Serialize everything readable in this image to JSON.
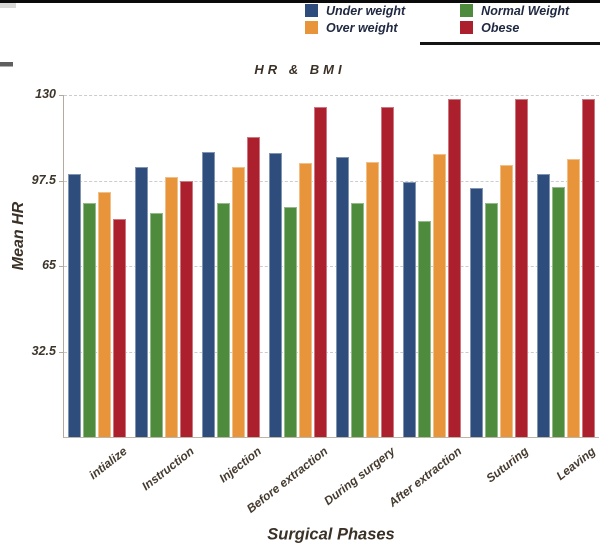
{
  "window": {
    "top_border_color": "#0b0b0b",
    "tab_color": "#d9d9d7",
    "edge_dash_color": "#5f5f5f",
    "legend_underline_color": "#141414"
  },
  "chart_data": {
    "type": "bar",
    "title": "HR & BMI",
    "xlabel": "Surgical Phases",
    "ylabel": "Mean HR",
    "categories": [
      "intialize",
      "Instruction",
      "Injection",
      "Before extraction",
      "During surgery",
      "After extraction",
      "Suturing",
      "Leaving"
    ],
    "series": [
      {
        "name": "Under weight",
        "color": "#2E4D7C",
        "values": [
          100,
          102.5,
          108.5,
          108,
          106.5,
          97,
          94.5,
          100
        ]
      },
      {
        "name": "Normal Weight",
        "color": "#4E8B3D",
        "values": [
          89,
          85,
          89,
          87.5,
          89,
          82,
          89,
          95
        ]
      },
      {
        "name": "Over weight",
        "color": "#E8943A",
        "values": [
          93,
          99,
          102.5,
          104,
          104.5,
          107.5,
          103.5,
          105.5
        ]
      },
      {
        "name": "Obese",
        "color": "#AC1F2D",
        "values": [
          83,
          97.5,
          114,
          125.5,
          125.5,
          128.5,
          128.5,
          128.5
        ]
      }
    ],
    "y_ticks": [
      32.5,
      65,
      97.5,
      130
    ],
    "ylim": [
      0,
      130
    ],
    "grid": "dashed-horizontal",
    "legend_position": "top-right",
    "legend_columns": [
      [
        0,
        2
      ],
      [
        1,
        3
      ]
    ]
  }
}
